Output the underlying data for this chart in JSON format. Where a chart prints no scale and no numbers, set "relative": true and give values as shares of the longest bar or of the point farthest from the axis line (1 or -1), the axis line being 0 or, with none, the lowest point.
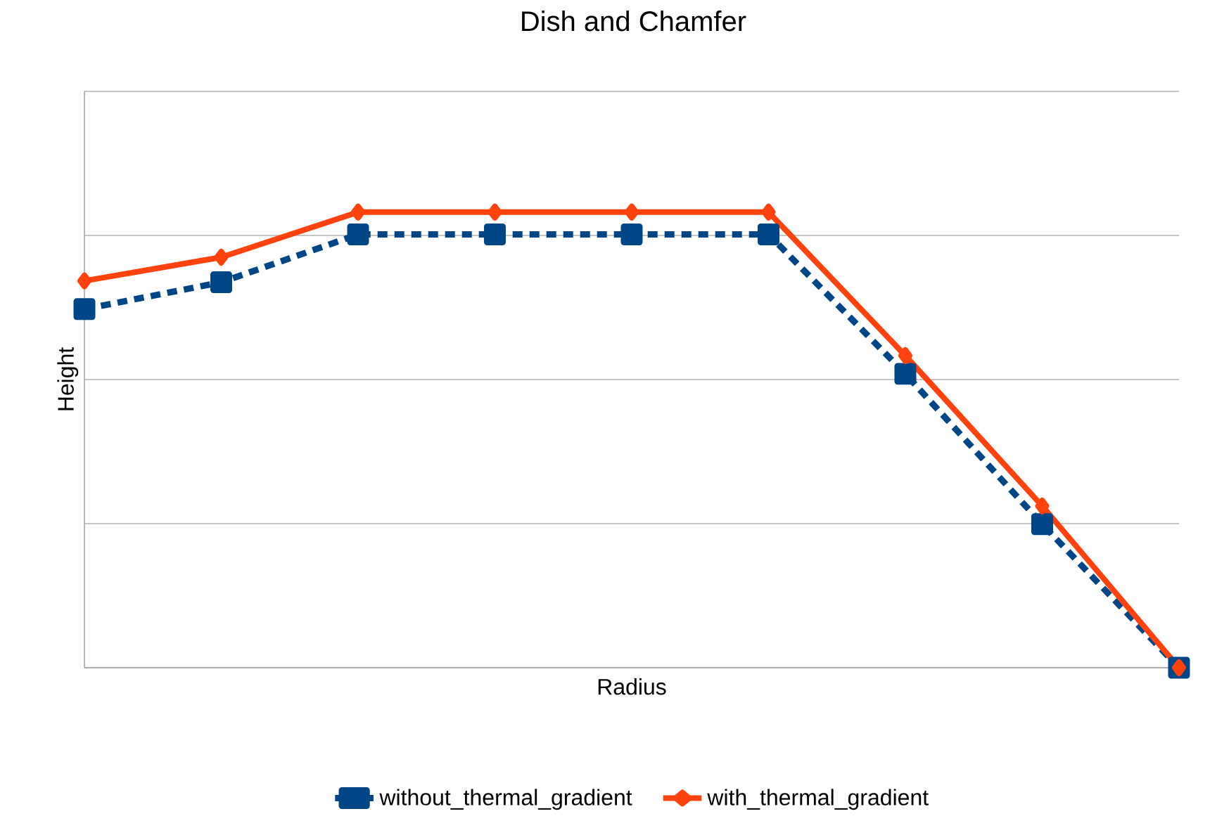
{
  "chart_data": {
    "type": "line",
    "title": "Dish and Chamfer",
    "xlabel": "Radius",
    "ylabel": "Height",
    "relative": true,
    "categories": [
      null,
      null,
      null,
      null,
      null,
      null,
      null,
      null,
      null
    ],
    "grid": "y",
    "legend": "bottom",
    "series": [
      {
        "name": "without_thermal_gradient",
        "color": "#004586",
        "marker": "square",
        "line_style": "dashed",
        "values": [
          0.787,
          0.846,
          0.951,
          0.951,
          0.951,
          0.951,
          0.645,
          0.315,
          0
        ]
      },
      {
        "name": "with_thermal_gradient",
        "color": "#ff420e",
        "marker": "diamond",
        "line_style": "solid",
        "values": [
          0.849,
          0.901,
          1,
          1,
          1,
          1,
          0.685,
          0.355,
          0
        ]
      }
    ]
  }
}
